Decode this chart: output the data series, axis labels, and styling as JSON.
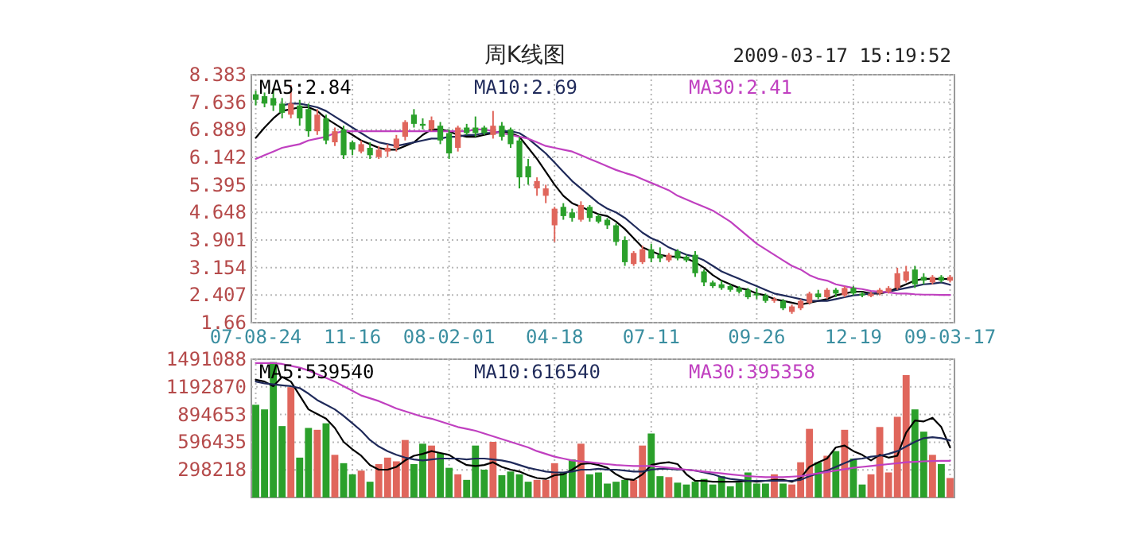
{
  "chart_data": [
    {
      "type": "candlestick",
      "title": "周K线图",
      "annotations": [
        "2009-03-17 15:19:52"
      ],
      "categories": [
        "07-08-24",
        null,
        null,
        null,
        null,
        null,
        null,
        null,
        null,
        null,
        null,
        "11-16",
        null,
        null,
        null,
        null,
        null,
        null,
        null,
        null,
        null,
        null,
        "08-02-01",
        null,
        null,
        null,
        null,
        null,
        null,
        null,
        null,
        null,
        null,
        null,
        "04-18",
        null,
        null,
        null,
        null,
        null,
        null,
        null,
        null,
        null,
        null,
        "07-11",
        null,
        null,
        null,
        null,
        null,
        null,
        null,
        null,
        null,
        null,
        null,
        "09-26",
        null,
        null,
        null,
        null,
        null,
        null,
        null,
        null,
        null,
        null,
        "12-19",
        null,
        null,
        null,
        null,
        null,
        null,
        null,
        null,
        null,
        null,
        "09-03-17"
      ],
      "ohlc": [
        [
          7.85,
          7.95,
          7.55,
          7.7
        ],
        [
          7.8,
          7.9,
          7.5,
          7.6
        ],
        [
          7.75,
          8.0,
          7.4,
          7.55
        ],
        [
          7.6,
          7.75,
          7.2,
          7.35
        ],
        [
          7.3,
          8.1,
          7.2,
          7.6
        ],
        [
          7.55,
          7.7,
          7.0,
          7.2
        ],
        [
          7.45,
          7.6,
          6.7,
          6.85
        ],
        [
          6.85,
          7.45,
          6.75,
          7.3
        ],
        [
          7.2,
          7.3,
          6.5,
          6.6
        ],
        [
          6.55,
          6.95,
          6.45,
          6.85
        ],
        [
          6.9,
          7.0,
          6.1,
          6.2
        ],
        [
          6.55,
          6.6,
          6.2,
          6.35
        ],
        [
          6.3,
          6.6,
          6.25,
          6.5
        ],
        [
          6.4,
          6.55,
          6.1,
          6.2
        ],
        [
          6.15,
          6.45,
          6.1,
          6.35
        ],
        [
          6.3,
          6.5,
          6.15,
          6.4
        ],
        [
          6.4,
          6.75,
          6.3,
          6.65
        ],
        [
          6.7,
          7.15,
          6.6,
          7.1
        ],
        [
          7.3,
          7.45,
          6.95,
          7.05
        ],
        [
          7.05,
          7.2,
          6.9,
          7.0
        ],
        [
          6.9,
          7.25,
          6.85,
          7.15
        ],
        [
          7.0,
          7.1,
          6.5,
          6.6
        ],
        [
          6.8,
          6.9,
          6.1,
          6.25
        ],
        [
          6.4,
          7.0,
          6.3,
          6.95
        ],
        [
          6.95,
          7.05,
          6.75,
          6.8
        ],
        [
          6.95,
          7.25,
          6.7,
          6.8
        ],
        [
          6.95,
          7.0,
          6.75,
          6.8
        ],
        [
          6.75,
          7.4,
          6.65,
          7.0
        ],
        [
          7.0,
          7.1,
          6.6,
          6.7
        ],
        [
          6.9,
          6.95,
          6.4,
          6.5
        ],
        [
          6.6,
          6.7,
          5.3,
          5.6
        ],
        [
          5.9,
          6.1,
          5.4,
          5.6
        ],
        [
          5.3,
          5.6,
          5.1,
          5.5
        ],
        [
          5.1,
          5.4,
          4.9,
          5.3
        ],
        [
          4.3,
          4.8,
          3.85,
          4.75
        ],
        [
          4.8,
          4.9,
          4.45,
          4.55
        ],
        [
          4.65,
          4.75,
          4.4,
          4.5
        ],
        [
          4.45,
          4.95,
          4.4,
          4.85
        ],
        [
          4.8,
          4.85,
          4.4,
          4.5
        ],
        [
          4.55,
          4.6,
          4.35,
          4.4
        ],
        [
          4.45,
          4.5,
          4.2,
          4.3
        ],
        [
          4.3,
          4.35,
          3.75,
          3.85
        ],
        [
          3.9,
          4.0,
          3.2,
          3.3
        ],
        [
          3.25,
          3.6,
          3.2,
          3.55
        ],
        [
          3.3,
          3.75,
          3.25,
          3.65
        ],
        [
          3.65,
          3.8,
          3.3,
          3.4
        ],
        [
          3.5,
          3.7,
          3.3,
          3.4
        ],
        [
          3.35,
          3.55,
          3.3,
          3.5
        ],
        [
          3.6,
          3.65,
          3.35,
          3.4
        ],
        [
          3.45,
          3.5,
          3.3,
          3.35
        ],
        [
          3.5,
          3.6,
          2.9,
          3.0
        ],
        [
          3.05,
          3.1,
          2.65,
          2.75
        ],
        [
          2.75,
          2.8,
          2.6,
          2.65
        ],
        [
          2.7,
          2.8,
          2.55,
          2.6
        ],
        [
          2.65,
          2.7,
          2.5,
          2.55
        ],
        [
          2.6,
          2.65,
          2.45,
          2.5
        ],
        [
          2.55,
          2.6,
          2.3,
          2.35
        ],
        [
          2.45,
          2.6,
          2.3,
          2.4
        ],
        [
          2.4,
          2.45,
          2.2,
          2.25
        ],
        [
          2.25,
          2.35,
          2.2,
          2.3
        ],
        [
          2.25,
          2.3,
          2.0,
          2.05
        ],
        [
          1.95,
          2.15,
          1.9,
          2.1
        ],
        [
          2.05,
          2.3,
          2.0,
          2.25
        ],
        [
          2.2,
          2.5,
          2.15,
          2.45
        ],
        [
          2.45,
          2.55,
          2.3,
          2.35
        ],
        [
          2.35,
          2.6,
          2.3,
          2.55
        ],
        [
          2.55,
          2.6,
          2.35,
          2.45
        ],
        [
          2.4,
          2.65,
          2.35,
          2.6
        ],
        [
          2.6,
          2.65,
          2.4,
          2.45
        ],
        [
          2.45,
          2.5,
          2.35,
          2.4
        ],
        [
          2.38,
          2.5,
          2.35,
          2.45
        ],
        [
          2.45,
          2.6,
          2.4,
          2.55
        ],
        [
          2.5,
          2.65,
          2.45,
          2.6
        ],
        [
          2.6,
          3.15,
          2.55,
          3.0
        ],
        [
          2.8,
          3.2,
          2.75,
          3.05
        ],
        [
          3.1,
          3.2,
          2.6,
          2.7
        ],
        [
          2.9,
          3.0,
          2.7,
          2.8
        ],
        [
          2.75,
          2.95,
          2.7,
          2.9
        ],
        [
          2.9,
          2.95,
          2.75,
          2.8
        ],
        [
          2.8,
          2.95,
          2.75,
          2.9
        ]
      ],
      "colors": [
        "#2ba02b",
        "#2ba02b",
        "#2ba02b",
        "#2ba02b",
        "#e0665c",
        "#2ba02b",
        "#2ba02b",
        "#e0665c",
        "#2ba02b",
        "#e0665c",
        "#2ba02b",
        "#2ba02b",
        "#e0665c",
        "#2ba02b",
        "#e0665c",
        "#e0665c",
        "#e0665c",
        "#e0665c",
        "#2ba02b",
        "#2ba02b",
        "#e0665c",
        "#2ba02b",
        "#2ba02b",
        "#e0665c",
        "#2ba02b",
        "#2ba02b",
        "#2ba02b",
        "#e0665c",
        "#2ba02b",
        "#2ba02b",
        "#2ba02b",
        "#2ba02b",
        "#e0665c",
        "#e0665c",
        "#e0665c",
        "#2ba02b",
        "#2ba02b",
        "#e0665c",
        "#2ba02b",
        "#2ba02b",
        "#2ba02b",
        "#2ba02b",
        "#2ba02b",
        "#e0665c",
        "#e0665c",
        "#2ba02b",
        "#2ba02b",
        "#e0665c",
        "#2ba02b",
        "#2ba02b",
        "#2ba02b",
        "#2ba02b",
        "#2ba02b",
        "#2ba02b",
        "#2ba02b",
        "#2ba02b",
        "#2ba02b",
        "#2ba02b",
        "#2ba02b",
        "#e0665c",
        "#2ba02b",
        "#e0665c",
        "#e0665c",
        "#e0665c",
        "#2ba02b",
        "#e0665c",
        "#2ba02b",
        "#e0665c",
        "#2ba02b",
        "#2ba02b",
        "#e0665c",
        "#e0665c",
        "#e0665c",
        "#e0665c",
        "#e0665c",
        "#2ba02b",
        "#2ba02b",
        "#e0665c",
        "#2ba02b",
        "#e0665c"
      ],
      "series": [
        {
          "type": "line",
          "name": "MA5:2.84",
          "color": "#000000",
          "values": [
            6.67,
            6.95,
            7.2,
            7.4,
            7.45,
            7.5,
            7.5,
            7.4,
            7.2,
            7.05,
            6.9,
            6.75,
            6.6,
            6.5,
            6.4,
            6.35,
            6.35,
            6.45,
            6.55,
            6.75,
            6.9,
            6.9,
            6.85,
            6.75,
            6.7,
            6.7,
            6.75,
            6.8,
            6.85,
            6.8,
            6.7,
            6.4,
            6.1,
            5.75,
            5.4,
            5.1,
            4.9,
            4.8,
            4.7,
            4.6,
            4.55,
            4.4,
            4.2,
            3.95,
            3.7,
            3.6,
            3.5,
            3.45,
            3.45,
            3.4,
            3.3,
            3.15,
            2.95,
            2.8,
            2.7,
            2.6,
            2.55,
            2.45,
            2.4,
            2.3,
            2.25,
            2.2,
            2.15,
            2.2,
            2.25,
            2.3,
            2.4,
            2.45,
            2.5,
            2.5,
            2.45,
            2.45,
            2.5,
            2.6,
            2.7,
            2.8,
            2.85,
            2.85,
            2.85,
            2.84
          ]
        },
        {
          "type": "line",
          "name": "MA10:2.69",
          "color": "#1f2a5a",
          "values": [
            null,
            null,
            null,
            7.55,
            7.6,
            7.6,
            7.55,
            7.5,
            7.4,
            7.25,
            7.1,
            6.95,
            6.8,
            6.65,
            6.55,
            6.5,
            6.45,
            6.5,
            6.55,
            6.6,
            6.65,
            6.65,
            6.7,
            6.7,
            6.75,
            6.75,
            6.8,
            6.8,
            6.85,
            6.85,
            6.8,
            6.65,
            6.45,
            6.25,
            6.0,
            5.75,
            5.5,
            5.3,
            5.1,
            4.9,
            4.75,
            4.65,
            4.5,
            4.3,
            4.1,
            3.95,
            3.85,
            3.7,
            3.6,
            3.5,
            3.45,
            3.35,
            3.2,
            3.05,
            2.95,
            2.85,
            2.75,
            2.65,
            2.55,
            2.45,
            2.4,
            2.35,
            2.3,
            2.25,
            2.25,
            2.25,
            2.3,
            2.35,
            2.4,
            2.42,
            2.45,
            2.47,
            2.5,
            2.55,
            2.6,
            2.65,
            2.7,
            2.72,
            2.75,
            2.69
          ]
        },
        {
          "type": "line",
          "name": "MA30:2.41",
          "color": "#c040c0",
          "values": [
            6.1,
            6.2,
            6.3,
            6.4,
            6.45,
            6.5,
            6.6,
            6.65,
            6.7,
            6.8,
            6.85,
            6.85,
            6.85,
            6.85,
            6.85,
            6.85,
            6.85,
            6.85,
            6.85,
            6.85,
            6.85,
            6.85,
            6.85,
            6.85,
            6.85,
            6.9,
            6.9,
            6.85,
            6.8,
            6.75,
            6.7,
            6.65,
            6.55,
            6.45,
            6.4,
            6.35,
            6.3,
            6.2,
            6.1,
            6.0,
            5.9,
            5.8,
            5.72,
            5.65,
            5.55,
            5.45,
            5.35,
            5.25,
            5.1,
            5.0,
            4.9,
            4.8,
            4.7,
            4.55,
            4.4,
            4.2,
            4.0,
            3.8,
            3.65,
            3.5,
            3.35,
            3.2,
            3.1,
            2.95,
            2.85,
            2.8,
            2.7,
            2.65,
            2.6,
            2.57,
            2.52,
            2.5,
            2.48,
            2.45,
            2.45,
            2.43,
            2.42,
            2.42,
            2.41,
            2.41
          ]
        }
      ],
      "ylim": [
        1.66,
        8.383
      ],
      "yticks": [
        1.66,
        2.407,
        3.154,
        3.901,
        4.648,
        5.395,
        6.142,
        6.889,
        7.636,
        8.383
      ],
      "grid": true,
      "legend": "top"
    },
    {
      "type": "bar",
      "tick_labels": "y",
      "categories": [
        null,
        null,
        null,
        null,
        null,
        null,
        null,
        null,
        null,
        null,
        null,
        null,
        null,
        null,
        null,
        null,
        null,
        null,
        null,
        null,
        null,
        null,
        null,
        null,
        null,
        null,
        null,
        null,
        null,
        null,
        null,
        null,
        null,
        null,
        null,
        null,
        null,
        null,
        null,
        null,
        null,
        null,
        null,
        null,
        null,
        null,
        null,
        null,
        null,
        null,
        null,
        null,
        null,
        null,
        null,
        null,
        null,
        null,
        null,
        null,
        null,
        null,
        null,
        null,
        null,
        null,
        null,
        null,
        null,
        null,
        null,
        null,
        null,
        null,
        null,
        null,
        null,
        null,
        null,
        null
      ],
      "values": [
        1000000,
        950000,
        1460000,
        770000,
        1190000,
        430000,
        750000,
        730000,
        800000,
        460000,
        370000,
        250000,
        290000,
        170000,
        360000,
        430000,
        390000,
        620000,
        360000,
        580000,
        560000,
        480000,
        320000,
        250000,
        190000,
        560000,
        300000,
        600000,
        240000,
        280000,
        250000,
        170000,
        190000,
        190000,
        370000,
        270000,
        410000,
        580000,
        250000,
        270000,
        150000,
        170000,
        190000,
        190000,
        560000,
        690000,
        230000,
        220000,
        160000,
        140000,
        170000,
        200000,
        140000,
        230000,
        120000,
        160000,
        270000,
        150000,
        150000,
        250000,
        150000,
        140000,
        380000,
        740000,
        380000,
        450000,
        500000,
        730000,
        420000,
        140000,
        250000,
        760000,
        270000,
        870000,
        1320000,
        950000,
        710000,
        460000,
        360000,
        210000
      ],
      "colors": [
        "#2ba02b",
        "#2ba02b",
        "#2ba02b",
        "#2ba02b",
        "#e0665c",
        "#2ba02b",
        "#2ba02b",
        "#e0665c",
        "#2ba02b",
        "#e0665c",
        "#2ba02b",
        "#2ba02b",
        "#e0665c",
        "#2ba02b",
        "#e0665c",
        "#e0665c",
        "#e0665c",
        "#e0665c",
        "#2ba02b",
        "#2ba02b",
        "#e0665c",
        "#2ba02b",
        "#2ba02b",
        "#e0665c",
        "#2ba02b",
        "#2ba02b",
        "#2ba02b",
        "#e0665c",
        "#2ba02b",
        "#2ba02b",
        "#2ba02b",
        "#2ba02b",
        "#e0665c",
        "#e0665c",
        "#e0665c",
        "#2ba02b",
        "#2ba02b",
        "#e0665c",
        "#2ba02b",
        "#2ba02b",
        "#2ba02b",
        "#2ba02b",
        "#2ba02b",
        "#e0665c",
        "#e0665c",
        "#2ba02b",
        "#2ba02b",
        "#e0665c",
        "#2ba02b",
        "#2ba02b",
        "#2ba02b",
        "#2ba02b",
        "#2ba02b",
        "#2ba02b",
        "#2ba02b",
        "#2ba02b",
        "#2ba02b",
        "#2ba02b",
        "#2ba02b",
        "#e0665c",
        "#2ba02b",
        "#e0665c",
        "#e0665c",
        "#e0665c",
        "#2ba02b",
        "#e0665c",
        "#2ba02b",
        "#e0665c",
        "#2ba02b",
        "#2ba02b",
        "#e0665c",
        "#e0665c",
        "#e0665c",
        "#e0665c",
        "#e0665c",
        "#2ba02b",
        "#2ba02b",
        "#e0665c",
        "#2ba02b",
        "#e0665c"
      ],
      "series": [
        {
          "type": "line",
          "name": "MA5:539540",
          "color": "#000000",
          "values": [
            1270000,
            1250000,
            1200000,
            1300000,
            1250000,
            1100000,
            950000,
            900000,
            850000,
            750000,
            600000,
            520000,
            450000,
            350000,
            300000,
            300000,
            330000,
            400000,
            450000,
            470000,
            500000,
            480000,
            460000,
            400000,
            350000,
            340000,
            350000,
            380000,
            330000,
            300000,
            280000,
            240000,
            210000,
            200000,
            240000,
            250000,
            300000,
            360000,
            370000,
            350000,
            320000,
            250000,
            200000,
            190000,
            250000,
            350000,
            370000,
            380000,
            360000,
            250000,
            180000,
            180000,
            170000,
            170000,
            170000,
            170000,
            180000,
            170000,
            180000,
            190000,
            190000,
            170000,
            210000,
            330000,
            380000,
            420000,
            540000,
            560000,
            500000,
            460000,
            400000,
            460000,
            430000,
            450000,
            700000,
            830000,
            820000,
            860000,
            760000,
            539540
          ]
        },
        {
          "type": "line",
          "name": "MA10:616540",
          "color": "#1f2a5a",
          "values": [
            1250000,
            1230000,
            1220000,
            1210000,
            1200000,
            1180000,
            1120000,
            1050000,
            1000000,
            950000,
            880000,
            800000,
            720000,
            620000,
            550000,
            500000,
            460000,
            430000,
            410000,
            400000,
            410000,
            420000,
            420000,
            420000,
            410000,
            420000,
            420000,
            410000,
            400000,
            380000,
            350000,
            320000,
            300000,
            280000,
            270000,
            270000,
            280000,
            300000,
            300000,
            310000,
            300000,
            300000,
            290000,
            280000,
            280000,
            300000,
            310000,
            310000,
            300000,
            300000,
            290000,
            270000,
            250000,
            220000,
            200000,
            190000,
            180000,
            180000,
            180000,
            180000,
            180000,
            180000,
            190000,
            230000,
            260000,
            290000,
            330000,
            370000,
            410000,
            420000,
            440000,
            450000,
            470000,
            500000,
            550000,
            600000,
            640000,
            650000,
            640000,
            616540
          ]
        },
        {
          "type": "line",
          "name": "MA30:395358",
          "color": "#c040c0",
          "values": [
            1450000,
            1450000,
            1450000,
            1440000,
            1420000,
            1400000,
            1370000,
            1330000,
            1290000,
            1250000,
            1200000,
            1150000,
            1100000,
            1070000,
            1040000,
            1000000,
            960000,
            930000,
            900000,
            870000,
            850000,
            820000,
            790000,
            760000,
            740000,
            720000,
            690000,
            660000,
            630000,
            600000,
            570000,
            540000,
            500000,
            470000,
            440000,
            420000,
            400000,
            390000,
            380000,
            370000,
            360000,
            350000,
            345000,
            340000,
            340000,
            340000,
            330000,
            320000,
            310000,
            300000,
            290000,
            280000,
            270000,
            260000,
            250000,
            240000,
            230000,
            225000,
            220000,
            220000,
            220000,
            225000,
            230000,
            245000,
            260000,
            275000,
            290000,
            305000,
            320000,
            330000,
            340000,
            350000,
            360000,
            370000,
            380000,
            385000,
            390000,
            393000,
            395000,
            395358
          ]
        }
      ],
      "ylim": [
        0,
        1491088
      ],
      "yticks": [
        298218,
        596435,
        894653,
        1192870,
        1491088
      ],
      "grid": true,
      "legend": "top"
    }
  ]
}
